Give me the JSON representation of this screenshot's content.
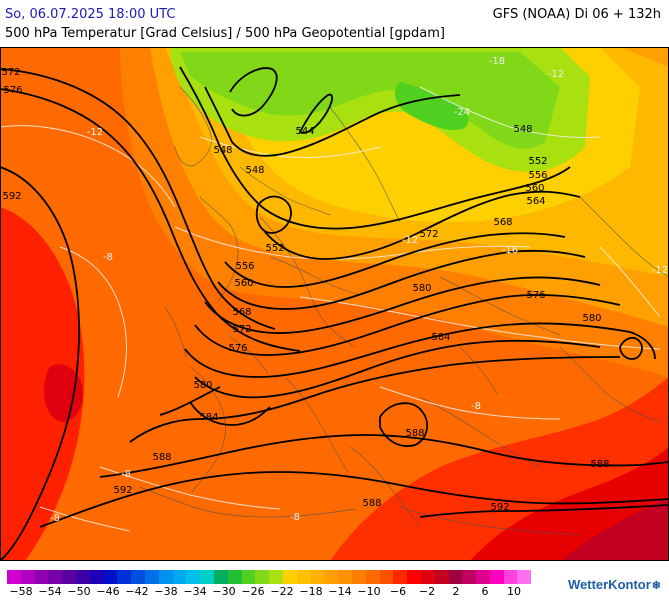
{
  "header": {
    "date": "So, 06.07.2025 18:00 UTC",
    "model": "GFS (NOAA) Di 06 + 132h",
    "subtitle": "500 hPa Temperatur [Grad Celsius] / 500 hPa Geopotential [gpdam]"
  },
  "map": {
    "region": "Europe and North Atlantic",
    "geopotential_labels": [
      {
        "text": "572",
        "lon_lat": "west-edge"
      },
      {
        "text": "576"
      },
      {
        "text": "592"
      },
      {
        "text": "548"
      },
      {
        "text": "544"
      },
      {
        "text": "548"
      },
      {
        "text": "552"
      },
      {
        "text": "556"
      },
      {
        "text": "560"
      },
      {
        "text": "564"
      },
      {
        "text": "568"
      },
      {
        "text": "572"
      },
      {
        "text": "576"
      },
      {
        "text": "580"
      },
      {
        "text": "584"
      },
      {
        "text": "588"
      },
      {
        "text": "592"
      }
    ],
    "temperature_labels": [
      "-12",
      "-8",
      "-24",
      "-18",
      "-12",
      "-16"
    ]
  },
  "labels": {
    "h572": "572",
    "h576": "576",
    "h592": "592",
    "h548a": "548",
    "h544": "544",
    "h548b": "548",
    "h548c": "548",
    "h552a": "552",
    "h556a": "556",
    "h560a": "560",
    "h564": "564",
    "h568a": "568",
    "h572b": "572",
    "h552b": "552",
    "h556b": "556",
    "h560b": "560",
    "h568b": "568",
    "h572c": "572",
    "h576b": "576",
    "h576c": "576",
    "h580a": "580",
    "h580b": "580",
    "h580c": "580",
    "h584a": "584",
    "h584b": "584",
    "h588a": "588",
    "h588b": "588",
    "h588c": "588",
    "h588d": "588",
    "h592b": "592",
    "h592c": "592",
    "t12a": "-12",
    "t8a": "-8",
    "t24": "-24",
    "t18": "-18",
    "t12b": "-12",
    "t16": "-16",
    "t12c": "-12",
    "t8b": "-8",
    "t8c": "-8",
    "t8d": "-8",
    "t12d": "-12",
    "t8e": "-8"
  },
  "legend": {
    "ticks": [
      "−58",
      "−54",
      "−50",
      "−46",
      "−42",
      "−38",
      "−34",
      "−30",
      "−26",
      "−22",
      "−18",
      "−14",
      "−10",
      "−6",
      "−2",
      "2",
      "6",
      "10"
    ],
    "colors": [
      "#d000d0",
      "#b000c0",
      "#9000b0",
      "#7800a8",
      "#5a00a0",
      "#3c00a8",
      "#1e00b8",
      "#0010c8",
      "#0030d8",
      "#0050e0",
      "#0070e8",
      "#0090f0",
      "#00a8f0",
      "#00c0e8",
      "#00d0c8",
      "#00b060",
      "#20c030",
      "#50d020",
      "#80d818",
      "#a8e010",
      "#ffd000",
      "#ffc000",
      "#ffb000",
      "#ffa000",
      "#ff9000",
      "#ff8000",
      "#ff6a00",
      "#ff5000",
      "#ff2a00",
      "#ff0000",
      "#e00010",
      "#c40020",
      "#a00040",
      "#c00060",
      "#e00090",
      "#ff00c0",
      "#ff40e0",
      "#ff70f0"
    ]
  },
  "brand": {
    "name": "WetterKontor",
    "icon": "snowflake-icon"
  },
  "colors": {
    "date_text": "#1a1ab4",
    "brand": "#1f5ea8"
  }
}
